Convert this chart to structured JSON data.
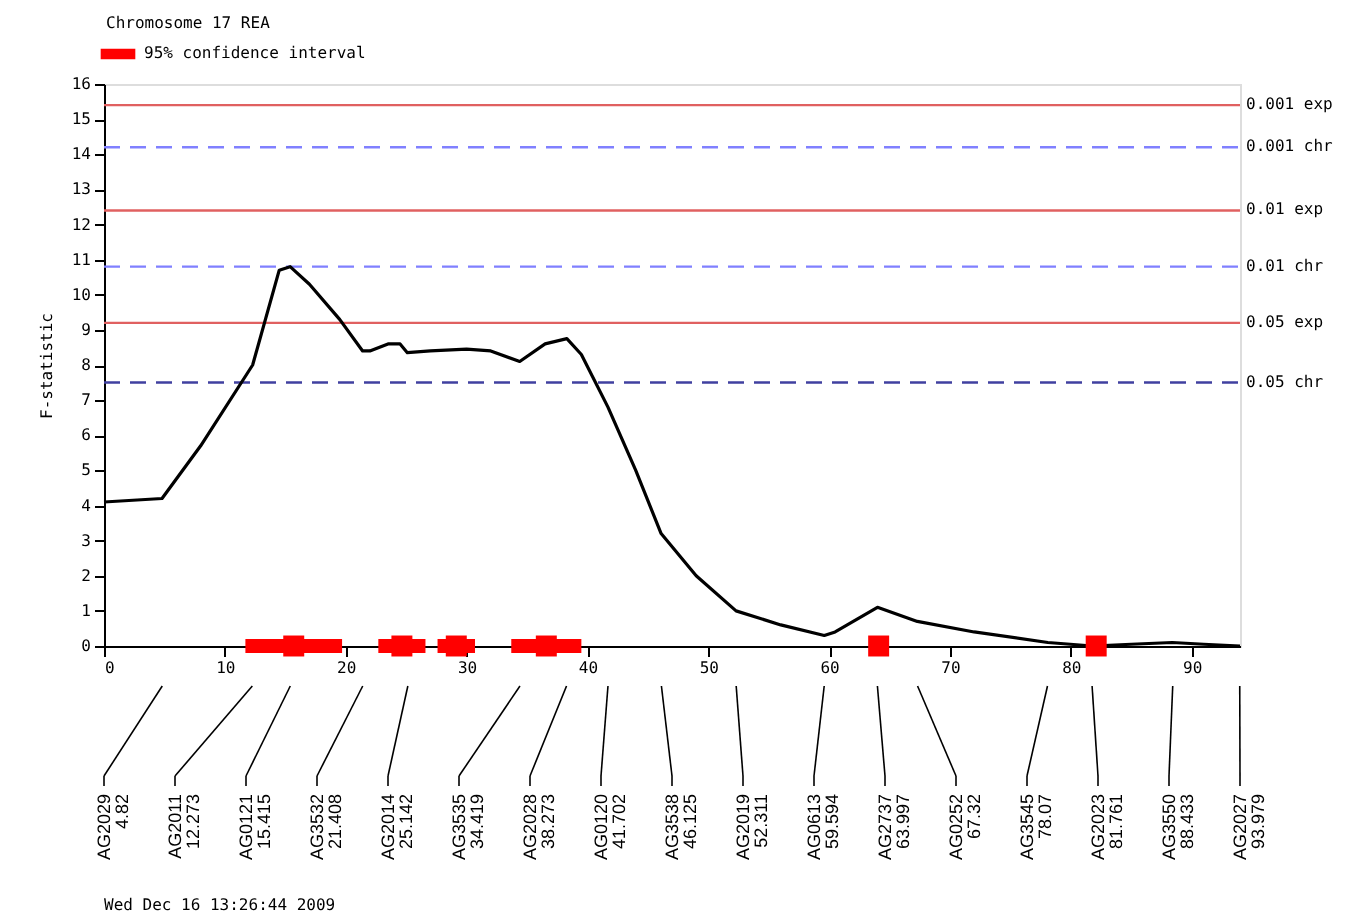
{
  "chart_data": {
    "type": "line",
    "title": "Chromosome 17  REA",
    "ylabel": "F-statistic",
    "xlim": [
      0,
      94
    ],
    "xticks": [
      0,
      10,
      20,
      30,
      40,
      50,
      60,
      70,
      80,
      90
    ],
    "ylim": [
      0,
      16
    ],
    "yticks": [
      0,
      1,
      2,
      3,
      4,
      5,
      6,
      7,
      8,
      9,
      10,
      11,
      12,
      13,
      14,
      15,
      16
    ],
    "grid": false,
    "legend": "top left",
    "line_style": "solid",
    "series": [
      {
        "color": "#000000",
        "x": [
          0,
          4.8,
          8,
          12.3,
          14.5,
          15.4,
          17,
          19.5,
          21.4,
          22,
          23.5,
          24.5,
          25.1,
          27,
          30,
          32,
          34.4,
          36.5,
          38.3,
          39.5,
          41.7,
          44,
          46.1,
          49,
          52.3,
          56,
          59.6,
          60.5,
          64,
          67.3,
          72,
          78.1,
          81.8,
          85,
          88.4,
          91,
          94
        ],
        "values": [
          4.1,
          4.2,
          5.7,
          8.0,
          10.7,
          10.8,
          10.3,
          9.3,
          8.4,
          8.4,
          8.6,
          8.6,
          8.35,
          8.4,
          8.45,
          8.4,
          8.1,
          8.6,
          8.75,
          8.3,
          6.8,
          5.0,
          3.2,
          2.0,
          1.0,
          0.6,
          0.3,
          0.4,
          1.1,
          0.7,
          0.4,
          0.1,
          0.0,
          0.05,
          0.1,
          0.05,
          0.0
        ]
      },
      {
        "type": "scatter",
        "name": "95% confidence interval",
        "color": "#ff0000",
        "x": [
          15.7,
          24.65,
          29.15,
          36.6,
          64.1,
          82.1
        ],
        "values": [
          0,
          0,
          0,
          0,
          0,
          0
        ],
        "xerrors": [
          [
            11.7,
            19.7
          ],
          [
            22.7,
            26.6
          ],
          [
            27.6,
            30.7
          ],
          [
            33.7,
            39.5
          ],
          [
            63.5,
            64.7
          ],
          [
            81.6,
            82.6
          ]
        ]
      }
    ],
    "ref_lines": [
      {
        "axis": "y",
        "value": 15.4,
        "label": "0.001 exp",
        "color": "#e06060",
        "line_style": "solid"
      },
      {
        "axis": "y",
        "value": 14.2,
        "label": "0.001 chr",
        "color": "#8080ff",
        "line_style": "dashed"
      },
      {
        "axis": "y",
        "value": 12.4,
        "label": "0.01 exp",
        "color": "#e06060",
        "line_style": "solid"
      },
      {
        "axis": "y",
        "value": 10.8,
        "label": "0.01 chr",
        "color": "#8080ff",
        "line_style": "dashed"
      },
      {
        "axis": "y",
        "value": 9.2,
        "label": "0.05 exp",
        "color": "#e06060",
        "line_style": "solid"
      },
      {
        "axis": "y",
        "value": 7.5,
        "label": "0.05 chr",
        "color": "#4040a0",
        "line_style": "dashed"
      }
    ],
    "annotations": [
      "AG2029\n4.82",
      "AG2011\n12.273",
      "AG0121\n15.415",
      "AG3532\n21.408",
      "AG2014\n25.142",
      "AG3535\n34.419",
      "AG2028\n38.273",
      "AG0120\n41.702",
      "AG3538\n46.125",
      "AG2019\n52.311",
      "AG0613\n59.594",
      "AG2737\n63.997",
      "AG0252\n67.32",
      "AG3545\n78.07",
      "AG2023\n81.761",
      "AG3550\n88.433",
      "AG2027\n93.979",
      "Wed Dec 16 13:26:44 2009"
    ]
  }
}
